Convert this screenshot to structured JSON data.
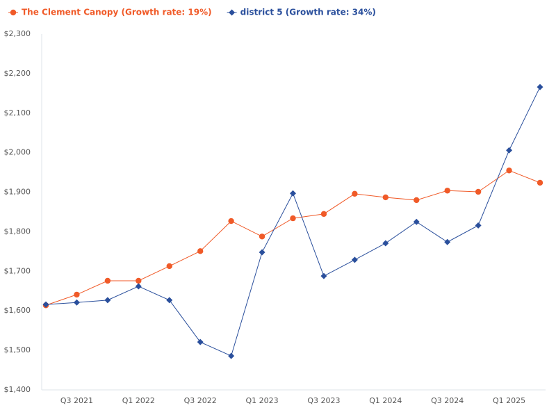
{
  "chart_data": {
    "type": "line",
    "categories": [
      null,
      "Q3 2021",
      null,
      "Q1 2022",
      null,
      "Q3 2022",
      null,
      "Q1 2023",
      null,
      "Q3 2023",
      null,
      "Q1 2024",
      null,
      "Q3 2024",
      null,
      "Q1 2025",
      null
    ],
    "series": [
      {
        "name": "The Clement Canopy (Growth rate: 19%)",
        "color": "#f05a28",
        "marker": "circle",
        "values": [
          1614,
          1641,
          1676,
          1676,
          1713,
          1751,
          1827,
          1788,
          1834,
          1845,
          1896,
          1887,
          1880,
          1904,
          1901,
          1955,
          1924
        ]
      },
      {
        "name": "district 5 (Growth rate: 34%)",
        "color": "#2a4f9c",
        "marker": "diamond",
        "values": [
          1616,
          1621,
          1627,
          1662,
          1627,
          1521,
          1486,
          1748,
          1897,
          1688,
          1729,
          1771,
          1825,
          1774,
          1816,
          2006,
          2166
        ]
      }
    ],
    "ylim": [
      1400,
      2300
    ],
    "yticks": [
      {
        "value": 1400,
        "label": "$1,400"
      },
      {
        "value": 1500,
        "label": "$1,500"
      },
      {
        "value": 1600,
        "label": "$1,600"
      },
      {
        "value": 1700,
        "label": "$1,700"
      },
      {
        "value": 1800,
        "label": "$1,800"
      },
      {
        "value": 1900,
        "label": "$1,900"
      },
      {
        "value": 2000,
        "label": "$2,000"
      },
      {
        "value": 2100,
        "label": "$2,100"
      },
      {
        "value": 2200,
        "label": "$2,200"
      },
      {
        "value": 2300,
        "label": "$2,300"
      }
    ],
    "grid": false
  }
}
